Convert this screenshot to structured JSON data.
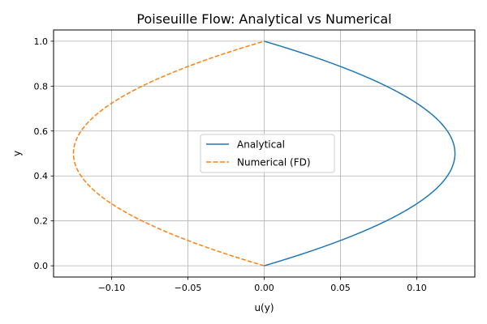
{
  "chart_data": {
    "type": "line",
    "title": "Poiseuille Flow: Analytical vs Numerical",
    "xlabel": "u(y)",
    "ylabel": "y",
    "xlim": [
      -0.138,
      0.138
    ],
    "ylim": [
      -0.05,
      1.05
    ],
    "xticks": [
      -0.1,
      -0.05,
      0.0,
      0.05,
      0.1
    ],
    "xtick_labels": [
      "−0.10",
      "−0.05",
      "0.00",
      "0.05",
      "0.10"
    ],
    "yticks": [
      0.0,
      0.2,
      0.4,
      0.6,
      0.8,
      1.0
    ],
    "ytick_labels": [
      "0.0",
      "0.2",
      "0.4",
      "0.6",
      "0.8",
      "1.0"
    ],
    "grid": true,
    "legend_position": "center",
    "series": [
      {
        "name": "Analytical",
        "color": "#1f77b4",
        "style": "solid",
        "y": [
          0.0,
          0.05,
          0.1,
          0.15,
          0.2,
          0.25,
          0.3,
          0.35,
          0.4,
          0.45,
          0.5,
          0.55,
          0.6,
          0.65,
          0.7,
          0.75,
          0.8,
          0.85,
          0.9,
          0.95,
          1.0
        ],
        "x": [
          0.0,
          0.0238,
          0.045,
          0.0638,
          0.08,
          0.0938,
          0.105,
          0.1138,
          0.12,
          0.1238,
          0.125,
          0.1238,
          0.12,
          0.1138,
          0.105,
          0.0938,
          0.08,
          0.0638,
          0.045,
          0.0238,
          0.0
        ]
      },
      {
        "name": "Numerical (FD)",
        "color": "#ff7f0e",
        "style": "dashed",
        "y": [
          0.0,
          0.05,
          0.1,
          0.15,
          0.2,
          0.25,
          0.3,
          0.35,
          0.4,
          0.45,
          0.5,
          0.55,
          0.6,
          0.65,
          0.7,
          0.75,
          0.8,
          0.85,
          0.9,
          0.95,
          1.0
        ],
        "x": [
          0.0,
          -0.0238,
          -0.045,
          -0.0638,
          -0.08,
          -0.0938,
          -0.105,
          -0.1138,
          -0.12,
          -0.1238,
          -0.125,
          -0.1238,
          -0.12,
          -0.1138,
          -0.105,
          -0.0938,
          -0.08,
          -0.0638,
          -0.045,
          -0.0238,
          0.0
        ]
      }
    ]
  }
}
